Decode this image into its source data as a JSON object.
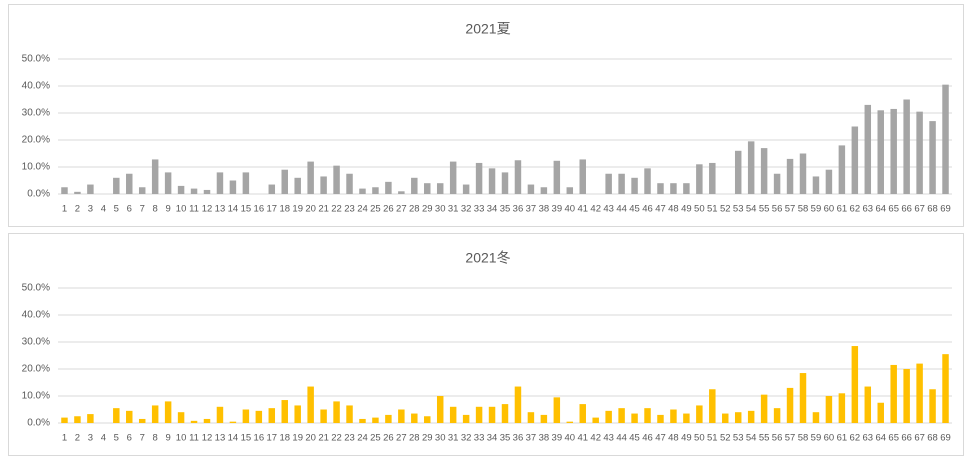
{
  "chart_data": [
    {
      "type": "bar",
      "title": "2021夏",
      "color": "#a5a5a5",
      "grid": true,
      "categories": [
        "1",
        "2",
        "3",
        "4",
        "5",
        "6",
        "7",
        "8",
        "9",
        "10",
        "11",
        "12",
        "13",
        "14",
        "15",
        "16",
        "17",
        "18",
        "19",
        "20",
        "21",
        "22",
        "23",
        "24",
        "25",
        "26",
        "27",
        "28",
        "29",
        "30",
        "31",
        "32",
        "33",
        "34",
        "35",
        "36",
        "37",
        "38",
        "39",
        "40",
        "41",
        "42",
        "43",
        "44",
        "45",
        "46",
        "47",
        "48",
        "49",
        "50",
        "51",
        "52",
        "53",
        "54",
        "55",
        "56",
        "57",
        "58",
        "59",
        "60",
        "61",
        "62",
        "63",
        "64",
        "65",
        "66",
        "67",
        "68",
        "69"
      ],
      "values": [
        2.5,
        0.8,
        3.5,
        0,
        6,
        7.5,
        2.5,
        12.8,
        8,
        3,
        2,
        1.5,
        8,
        5,
        8,
        0,
        3.5,
        9,
        6,
        12,
        6.5,
        10.5,
        7.5,
        2,
        2.5,
        4.5,
        1,
        6,
        4,
        4,
        12,
        3.5,
        11.5,
        9.5,
        8,
        12.5,
        3.5,
        2.5,
        12.3,
        2.5,
        12.8,
        0,
        7.5,
        7.5,
        6,
        9.5,
        4,
        4,
        4,
        11,
        11.5,
        0,
        16,
        19.5,
        17,
        7.5,
        13,
        15,
        6.5,
        9,
        18,
        25,
        33,
        31,
        31.5,
        35,
        30.5,
        27,
        40.5
      ],
      "ylim": [
        0,
        50
      ],
      "yticks": [
        {
          "value": 0,
          "label": "0.0%"
        },
        {
          "value": 10,
          "label": "10.0%"
        },
        {
          "value": 20,
          "label": "20.0%"
        },
        {
          "value": 30,
          "label": "30.0%"
        },
        {
          "value": 40,
          "label": "40.0%"
        },
        {
          "value": 50,
          "label": "50.0%"
        }
      ]
    },
    {
      "type": "bar",
      "title": "2021冬",
      "color": "#ffc000",
      "grid": true,
      "categories": [
        "1",
        "2",
        "3",
        "4",
        "5",
        "6",
        "7",
        "8",
        "9",
        "10",
        "11",
        "12",
        "13",
        "14",
        "15",
        "16",
        "17",
        "18",
        "19",
        "20",
        "21",
        "22",
        "23",
        "24",
        "25",
        "26",
        "27",
        "28",
        "29",
        "30",
        "31",
        "32",
        "33",
        "34",
        "35",
        "36",
        "37",
        "38",
        "39",
        "40",
        "41",
        "42",
        "43",
        "44",
        "45",
        "46",
        "47",
        "48",
        "49",
        "50",
        "51",
        "52",
        "53",
        "54",
        "55",
        "56",
        "57",
        "58",
        "59",
        "60",
        "61",
        "62",
        "63",
        "64",
        "65",
        "66",
        "67",
        "68",
        "69"
      ],
      "values": [
        2,
        2.5,
        3.3,
        0,
        5.5,
        4.5,
        1.5,
        6.5,
        8,
        4,
        0.8,
        1.5,
        6,
        0.5,
        5,
        4.5,
        5.5,
        8.5,
        6.5,
        13.5,
        5,
        8,
        6.5,
        1.5,
        2,
        3,
        5,
        3.5,
        2.5,
        10,
        6,
        3,
        6,
        6,
        7,
        13.5,
        4,
        3,
        9.5,
        0.5,
        7,
        2,
        4.5,
        5.5,
        3.5,
        5.5,
        3,
        5,
        3.5,
        6.5,
        12.5,
        3.5,
        4,
        4.5,
        10.5,
        5.5,
        13,
        18.5,
        4,
        10,
        11,
        28.5,
        13.5,
        7.5,
        21.5,
        20,
        22,
        12.5,
        25.5
      ],
      "ylim": [
        0,
        50
      ],
      "yticks": [
        {
          "value": 0,
          "label": "0.0%"
        },
        {
          "value": 10,
          "label": "10.0%"
        },
        {
          "value": 20,
          "label": "20.0%"
        },
        {
          "value": 30,
          "label": "30.0%"
        },
        {
          "value": 40,
          "label": "40.0%"
        },
        {
          "value": 50,
          "label": "50.0%"
        }
      ]
    }
  ]
}
